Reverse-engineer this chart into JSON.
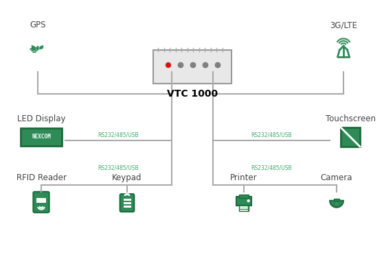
{
  "bg_color": "#ffffff",
  "green": "#2e8b57",
  "dark_green": "#1a6b3a",
  "line_color": "#aaaaaa",
  "rs_color": "#3aaa6a",
  "vtc_label": "VTC 1000",
  "gps_label": "GPS",
  "lte_label": "3G/LTE",
  "led_label": "LED Display",
  "touch_label": "Touchscreen",
  "rfid_label": "RFID Reader",
  "keypad_label": "Keypad",
  "printer_label": "Printer",
  "camera_label": "Camera",
  "rs_label": "RS232/485/USB"
}
